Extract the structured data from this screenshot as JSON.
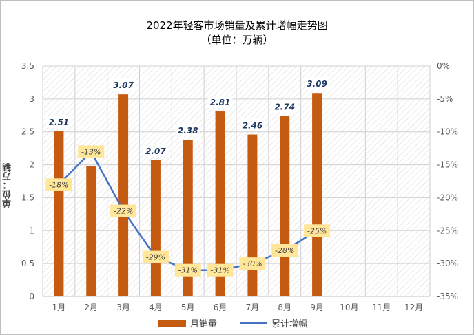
{
  "chart_data": {
    "type": "bar",
    "title": "2022年轻客市场销量及累计增幅走势图",
    "subtitle": "（单位：万辆）",
    "ylabel": "单位：万辆",
    "categories": [
      "1月",
      "2月",
      "3月",
      "4月",
      "5月",
      "6月",
      "7月",
      "8月",
      "9月",
      "10月",
      "11月",
      "12月"
    ],
    "series": [
      {
        "name": "月销量",
        "type": "bar",
        "axis": "left",
        "color": "#c55a11",
        "values": [
          2.51,
          1.98,
          3.07,
          2.07,
          2.38,
          2.81,
          2.46,
          2.74,
          3.09,
          null,
          null,
          null
        ],
        "labels": [
          "2.51",
          "",
          "3.07",
          "2.07",
          "2.38",
          "2.81",
          "2.46",
          "2.74",
          "3.09",
          "",
          "",
          ""
        ]
      },
      {
        "name": "累计增幅",
        "type": "line",
        "axis": "right",
        "color": "#4472c4",
        "values": [
          -18,
          -13,
          -22,
          -29,
          -31,
          -31,
          -30,
          -28,
          -25,
          null,
          null,
          null
        ],
        "labels": [
          "-18%",
          "-13%",
          "-22%",
          "-29%",
          "-31%",
          "-31%",
          "-30%",
          "-28%",
          "-25%",
          "",
          "",
          ""
        ]
      }
    ],
    "yleft": {
      "min": 0,
      "max": 3.5,
      "ticks": [
        "0",
        "0.5",
        "1",
        "1.5",
        "2",
        "2.5",
        "3",
        "3.5"
      ]
    },
    "yright": {
      "min": -35,
      "max": 0,
      "ticks": [
        "0%",
        "-5%",
        "-10%",
        "-15%",
        "-20%",
        "-25%",
        "-30%",
        "-35%"
      ]
    },
    "legend_position": "bottom",
    "grid": true
  }
}
